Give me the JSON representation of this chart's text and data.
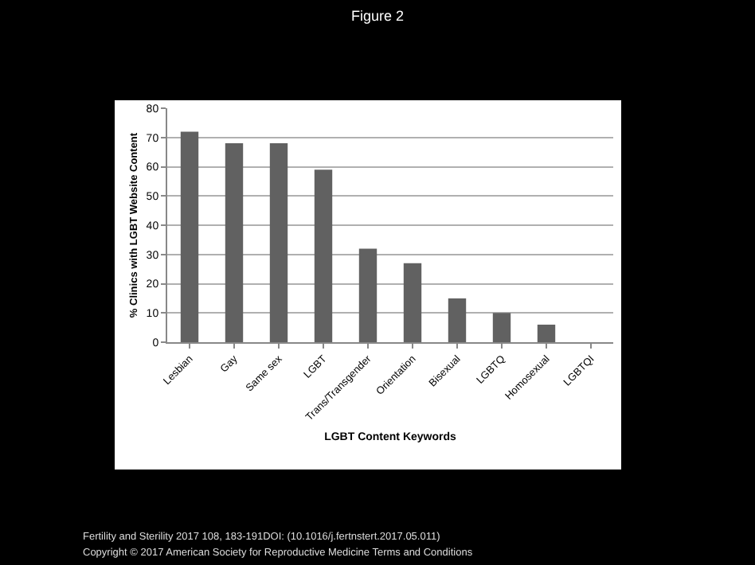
{
  "chart_data": {
    "type": "bar",
    "title": "Figure 2",
    "xlabel": "LGBT Content Keywords",
    "ylabel": "% Clinics with LGBT Website Content",
    "categories": [
      "Lesbian",
      "Gay",
      "Same sex",
      "LGBT",
      "Trans/Transgender",
      "Orientation",
      "Bisexual",
      "LGBTQ",
      "Homosexual",
      "LGBTQI"
    ],
    "values": [
      72,
      68,
      68,
      59,
      32,
      27,
      15,
      10,
      6,
      0
    ],
    "color": "#616161",
    "ylim": [
      0,
      80
    ],
    "yticks": [
      0,
      10,
      20,
      30,
      40,
      50,
      60,
      70,
      80
    ],
    "grid": "y",
    "legend": false,
    "annotations": [
      "Fertility and Sterility 2017 108, 183-191DOI: (10.1016/j.fertnstert.2017.05.011)",
      "Copyright © 2017 American Society for Reproductive Medicine Terms and Conditions"
    ]
  }
}
